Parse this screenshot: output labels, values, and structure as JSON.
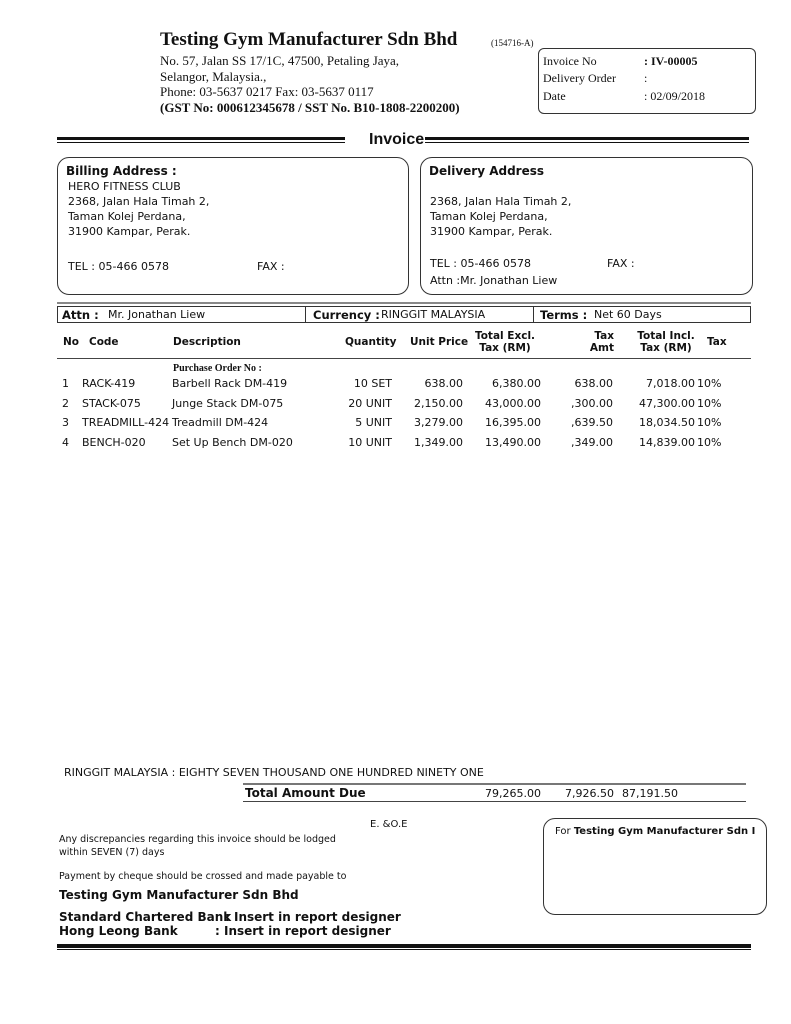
{
  "company": {
    "name": "Testing Gym Manufacturer Sdn Bhd",
    "reg_no": "(154716-A)",
    "address1": "No. 57, Jalan SS 17/1C, 47500, Petaling Jaya,",
    "address2": "Selangor, Malaysia.,",
    "phone": "Phone: 03-5637 0217   Fax: 03-5637 0117",
    "tax_ids": "(GST No: 000612345678 / SST No. B10-1808-2200200)"
  },
  "info": {
    "invoice_no_label": "Invoice No",
    "invoice_no": ": IV-00005",
    "do_label": "Delivery Order",
    "do_value": ":",
    "date_label": "Date",
    "date": ": 02/09/2018"
  },
  "title": "Invoice",
  "billing": {
    "heading": "Billing Address :",
    "name": "HERO FITNESS CLUB",
    "line1": "2368, Jalan Hala Timah 2,",
    "line2": "Taman Kolej Perdana,",
    "line3": "31900 Kampar, Perak.",
    "tel": "TEL : 05-466 0578",
    "fax": "FAX :"
  },
  "delivery": {
    "heading": "Delivery Address",
    "line1": "2368, Jalan Hala Timah 2,",
    "line2": "Taman Kolej Perdana,",
    "line3": "31900 Kampar, Perak.",
    "tel": "TEL : 05-466 0578",
    "fax": "FAX :",
    "attn": "Attn :Mr. Jonathan Liew"
  },
  "meta": {
    "attn_label": "Attn :",
    "attn": "Mr. Jonathan Liew",
    "currency_label": "Currency :",
    "currency": "RINGGIT MALAYSIA",
    "terms_label": "Terms :",
    "terms": "Net 60 Days"
  },
  "table": {
    "headers": {
      "no": "No",
      "code": "Code",
      "desc": "Description",
      "qty": "Quantity",
      "unit": "Unit Price",
      "excl1": "Total Excl.",
      "excl2": "Tax (RM)",
      "taxamt1": "Tax",
      "taxamt2": "Amt",
      "incl1": "Total Incl.",
      "incl2": "Tax (RM)",
      "tax": "Tax"
    },
    "po_label": "Purchase Order No :",
    "rows": [
      {
        "no": "1",
        "code": "RACK-419",
        "desc": "Barbell Rack DM-419",
        "qty": "10 SET",
        "unit": "638.00",
        "excl": "6,380.00",
        "taxamt": "638.00",
        "incl": "7,018.00",
        "tax": "10%"
      },
      {
        "no": "2",
        "code": "STACK-075",
        "desc": "Junge Stack DM-075",
        "qty": "20 UNIT",
        "unit": "2,150.00",
        "excl": "43,000.00",
        "taxamt": ",300.00",
        "incl": "47,300.00",
        "tax": "10%"
      },
      {
        "no": "3",
        "code": "TREADMILL-424",
        "desc": "Treadmill DM-424",
        "qty": "5 UNIT",
        "unit": "3,279.00",
        "excl": "16,395.00",
        "taxamt": ",639.50",
        "incl": "18,034.50",
        "tax": "10%"
      },
      {
        "no": "4",
        "code": "BENCH-020",
        "desc": "Set Up Bench DM-020",
        "qty": "10 UNIT",
        "unit": "1,349.00",
        "excl": "13,490.00",
        "taxamt": ",349.00",
        "incl": "14,839.00",
        "tax": "10%"
      }
    ]
  },
  "totals": {
    "words": "RINGGIT MALAYSIA : EIGHTY SEVEN THOUSAND ONE HUNDRED NINETY ONE",
    "label": "Total Amount Due",
    "excl": "79,265.00",
    "tax": "7,926.50",
    "incl": "87,191.50"
  },
  "footer": {
    "eoe": "E. &O.E",
    "disc1": "Any discrepancies regarding this invoice should be lodged",
    "disc2": "within SEVEN (7) days",
    "payment": "Payment by cheque should be crossed and made payable to",
    "payee": "Testing Gym Manufacturer Sdn Bhd",
    "bank1": "Standard Chartered Bank",
    "bank1_val": ": Insert in report designer",
    "bank2": "Hong Leong Bank",
    "bank2_val": ": Insert in report designer",
    "sign_prefix": "For ",
    "sign_company": "Testing Gym Manufacturer Sdn I"
  }
}
